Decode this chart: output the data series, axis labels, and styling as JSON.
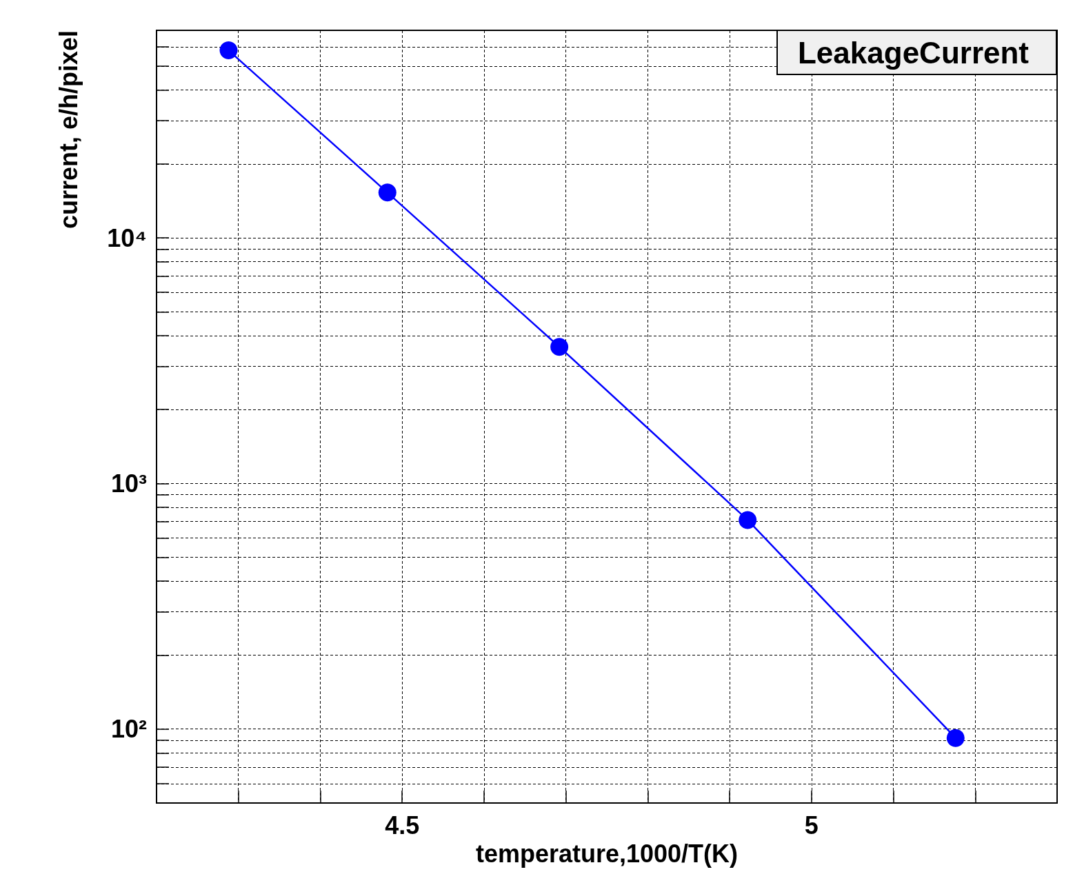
{
  "chart_data": {
    "type": "line",
    "title": "LeakageCurrent",
    "xlabel": "temperature,1000/T(K)",
    "ylabel": "current, e/h/pixel",
    "x": [
      4.288,
      4.482,
      4.692,
      4.922,
      5.176
    ],
    "series": [
      {
        "color": "#0000ff",
        "values": [
          58000,
          15300,
          3600,
          710,
          92
        ]
      }
    ],
    "xlim": [
      4.2,
      5.3
    ],
    "ylim": [
      50,
      70000
    ],
    "log": "y",
    "xticks": [
      {
        "value": 4.3,
        "label": null
      },
      {
        "value": 4.4,
        "label": null
      },
      4.5,
      {
        "value": 4.6,
        "label": null
      },
      {
        "value": 4.7,
        "label": null
      },
      {
        "value": 4.8,
        "label": null
      },
      {
        "value": 4.9,
        "label": null
      },
      5,
      {
        "value": 5.1,
        "label": null
      },
      {
        "value": 5.2,
        "label": null
      }
    ],
    "yticks": [
      {
        "value": 60,
        "label": null
      },
      {
        "value": 70,
        "label": null
      },
      {
        "value": 80,
        "label": null
      },
      {
        "value": 90,
        "label": null
      },
      {
        "value": 100,
        "label": "10²"
      },
      {
        "value": 200,
        "label": null
      },
      {
        "value": 300,
        "label": null
      },
      {
        "value": 400,
        "label": null
      },
      {
        "value": 500,
        "label": null
      },
      {
        "value": 600,
        "label": null
      },
      {
        "value": 700,
        "label": null
      },
      {
        "value": 800,
        "label": null
      },
      {
        "value": 900,
        "label": null
      },
      {
        "value": 1000,
        "label": "10³"
      },
      {
        "value": 2000,
        "label": null
      },
      {
        "value": 3000,
        "label": null
      },
      {
        "value": 4000,
        "label": null
      },
      {
        "value": 5000,
        "label": null
      },
      {
        "value": 6000,
        "label": null
      },
      {
        "value": 7000,
        "label": null
      },
      {
        "value": 8000,
        "label": null
      },
      {
        "value": 9000,
        "label": null
      },
      {
        "value": 10000,
        "label": "10⁴"
      },
      {
        "value": 20000,
        "label": null
      },
      {
        "value": 30000,
        "label": null
      },
      {
        "value": 40000,
        "label": null
      },
      {
        "value": 50000,
        "label": null
      },
      {
        "value": 60000,
        "label": null
      }
    ],
    "grid": true,
    "marker": "circle",
    "line_style": "solid"
  }
}
